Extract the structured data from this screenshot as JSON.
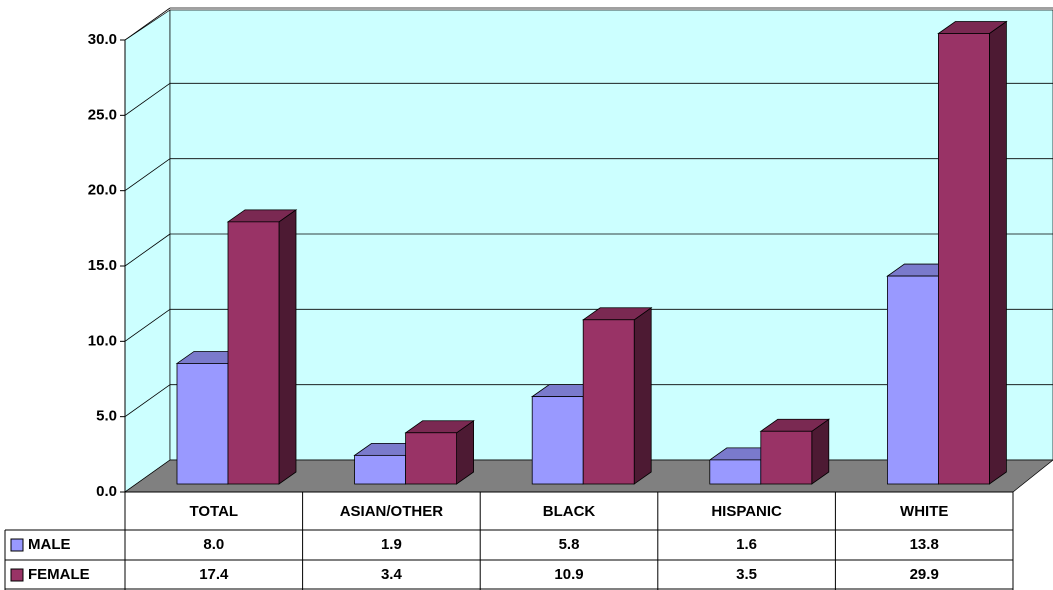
{
  "chart_data": {
    "type": "bar3d",
    "categories": [
      "TOTAL",
      "ASIAN/OTHER",
      "BLACK",
      "HISPANIC",
      "WHITE"
    ],
    "series": [
      {
        "name": "MALE",
        "color": "#9999ff",
        "values": [
          8.0,
          1.9,
          5.8,
          1.6,
          13.8
        ],
        "value_labels": [
          "8.0",
          "1.9",
          "5.8",
          "1.6",
          "13.8"
        ]
      },
      {
        "name": "FEMALE",
        "color": "#993366",
        "values": [
          17.4,
          3.4,
          10.9,
          3.5,
          29.9
        ],
        "value_labels": [
          "17.4",
          "3.4",
          "10.9",
          "3.5",
          "29.9"
        ]
      }
    ],
    "ylim": [
      0,
      30
    ],
    "yticks": [
      {
        "value": 0,
        "label": "0.0"
      },
      {
        "value": 5,
        "label": "5.0"
      },
      {
        "value": 10,
        "label": "10.0"
      },
      {
        "value": 15,
        "label": "15.0"
      },
      {
        "value": 20,
        "label": "20.0"
      },
      {
        "value": 25,
        "label": "25.0"
      },
      {
        "value": 30,
        "label": "30.0"
      }
    ],
    "grid": true
  }
}
